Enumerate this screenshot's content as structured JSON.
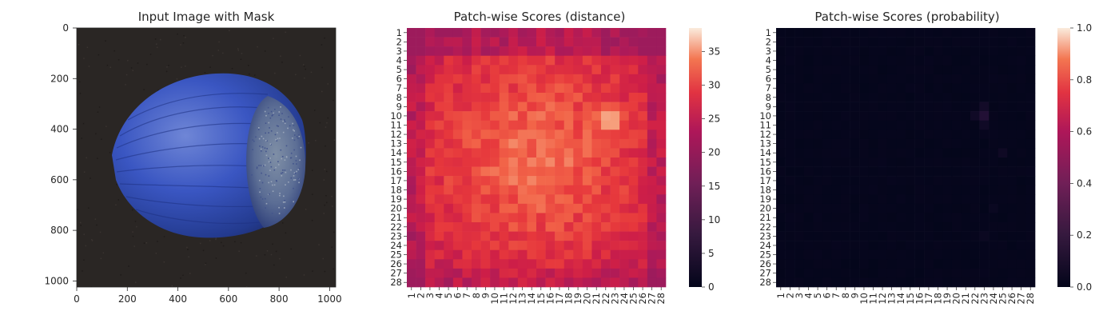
{
  "chart_data": [
    {
      "type": "image",
      "title": "Input Image with Mask",
      "xticks": [
        0,
        200,
        400,
        600,
        800,
        1000
      ],
      "yticks": [
        0,
        200,
        400,
        600,
        800,
        1000
      ],
      "xlim": [
        0,
        1024
      ],
      "ylim": [
        1024,
        0
      ],
      "colors": {
        "background": "#2a2624",
        "nut_dark": "#1c2a66",
        "nut_mid": "#3a56c2",
        "nut_light": "#6f86d6",
        "cap": "#7f8fa6"
      }
    },
    {
      "type": "heatmap",
      "title": "Patch-wise Scores (distance)",
      "xticks": [
        "1",
        "2",
        "3",
        "4",
        "5",
        "6",
        "7",
        "8",
        "9",
        "10",
        "11",
        "12",
        "13",
        "14",
        "15",
        "16",
        "17",
        "18",
        "19",
        "20",
        "21",
        "22",
        "23",
        "24",
        "25",
        "26",
        "27",
        "28"
      ],
      "yticks": [
        "1",
        "2",
        "3",
        "4",
        "5",
        "6",
        "7",
        "8",
        "9",
        "10",
        "11",
        "12",
        "13",
        "14",
        "15",
        "16",
        "17",
        "18",
        "19",
        "20",
        "21",
        "22",
        "23",
        "24",
        "25",
        "26",
        "27",
        "28"
      ],
      "colorbar": {
        "ticks": [
          0,
          5,
          10,
          15,
          20,
          25,
          30,
          35
        ],
        "vmin": 0,
        "vmax": 38.5
      },
      "cmap": "rocket",
      "grid": "28x28",
      "peak": {
        "row": 9,
        "col": 22,
        "value": 38
      }
    },
    {
      "type": "heatmap",
      "title": "Patch-wise Scores (probability)",
      "xticks": [
        "1",
        "2",
        "3",
        "4",
        "5",
        "6",
        "7",
        "8",
        "9",
        "10",
        "11",
        "12",
        "13",
        "14",
        "15",
        "16",
        "17",
        "18",
        "19",
        "20",
        "21",
        "22",
        "23",
        "24",
        "25",
        "26",
        "27",
        "28"
      ],
      "yticks": [
        "1",
        "2",
        "3",
        "4",
        "5",
        "6",
        "7",
        "8",
        "9",
        "10",
        "11",
        "12",
        "13",
        "14",
        "15",
        "16",
        "17",
        "18",
        "19",
        "20",
        "21",
        "22",
        "23",
        "24",
        "25",
        "26",
        "27",
        "28"
      ],
      "colorbar": {
        "ticks": [
          "0.0",
          "0.2",
          "0.4",
          "0.6",
          "0.8",
          "1.0"
        ],
        "vmin": 0,
        "vmax": 1
      },
      "cmap": "rocket",
      "grid": "28x28",
      "peak": {
        "row": 10,
        "col": 23,
        "value": 0.12
      }
    }
  ]
}
